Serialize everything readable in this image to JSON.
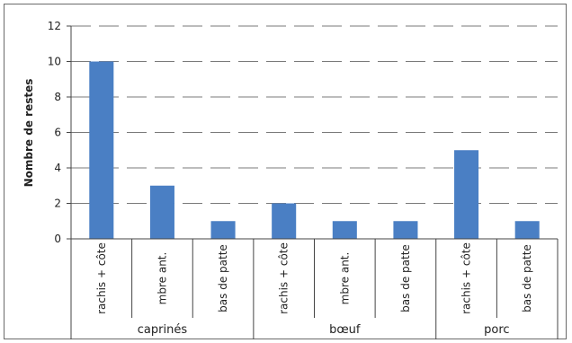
{
  "chart_data": {
    "type": "bar",
    "ylabel": "Nombre de restes",
    "xlabel": "",
    "title": "",
    "ylim": [
      0,
      12
    ],
    "yticks": [
      0,
      2,
      4,
      6,
      8,
      10,
      12
    ],
    "grid": true,
    "grid_style": "dashed",
    "bar_color": "#4a7fc4",
    "groups": [
      {
        "name": "caprinés",
        "categories": [
          "rachis + côte",
          "mbre ant.",
          "bas de patte"
        ],
        "values": [
          10,
          3,
          1
        ]
      },
      {
        "name": "bœuf",
        "categories": [
          "rachis + côte",
          "mbre ant.",
          "bas de patte"
        ],
        "values": [
          2,
          1,
          1
        ]
      },
      {
        "name": "porc",
        "categories": [
          "rachis + côte",
          "bas de patte"
        ],
        "values": [
          5,
          1
        ]
      }
    ]
  }
}
